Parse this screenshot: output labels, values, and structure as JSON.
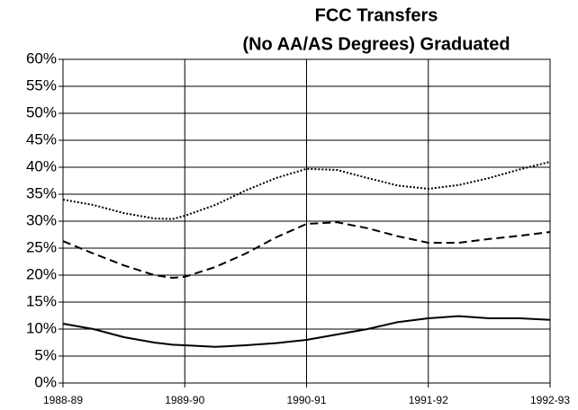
{
  "chart_data": {
    "type": "line",
    "title": [
      "FCC Transfers",
      "(No AA/AS Degrees) Graduated"
    ],
    "x": [
      0,
      0.25,
      0.5,
      0.75,
      0.9,
      1,
      1.25,
      1.5,
      1.75,
      2,
      2.25,
      2.5,
      2.75,
      3,
      3.25,
      3.5,
      3.75,
      4
    ],
    "series": [
      {
        "color": "#000000",
        "dash": "2,2",
        "values": [
          34,
          33,
          31.5,
          30.5,
          30.4,
          31,
          33,
          35.7,
          38,
          39.7,
          39.5,
          38,
          36.6,
          36,
          36.7,
          38,
          39.6,
          41
        ]
      },
      {
        "color": "#000000",
        "dash": "9,5",
        "values": [
          26.3,
          24,
          21.8,
          20,
          19.5,
          19.7,
          21.5,
          24,
          27,
          29.5,
          29.8,
          28.7,
          27.2,
          26,
          26,
          26.7,
          27.3,
          28
        ]
      },
      {
        "color": "#000000",
        "dash": "none",
        "values": [
          11,
          10,
          8.5,
          7.5,
          7.1,
          7,
          6.7,
          7,
          7.4,
          8,
          9,
          10,
          11.3,
          12,
          12.4,
          12,
          12,
          11.7
        ]
      }
    ],
    "xlim": [
      0,
      4
    ],
    "xticks": [
      {
        "value": 0,
        "label": "1988-89"
      },
      {
        "value": 1,
        "label": "1989-90"
      },
      {
        "value": 2,
        "label": "1990-91"
      },
      {
        "value": 3,
        "label": "1991-92"
      },
      {
        "value": 4,
        "label": "1992-93"
      }
    ],
    "ylim": [
      0,
      60
    ],
    "yticks": [
      {
        "value": 0,
        "label": "0%"
      },
      {
        "value": 5,
        "label": "5%"
      },
      {
        "value": 10,
        "label": "10%"
      },
      {
        "value": 15,
        "label": "15%"
      },
      {
        "value": 20,
        "label": "20%"
      },
      {
        "value": 25,
        "label": "25%"
      },
      {
        "value": 30,
        "label": "30%"
      },
      {
        "value": 35,
        "label": "35%"
      },
      {
        "value": 40,
        "label": "40%"
      },
      {
        "value": 45,
        "label": "45%"
      },
      {
        "value": 50,
        "label": "50%"
      },
      {
        "value": 55,
        "label": "55%"
      },
      {
        "value": 60,
        "label": "60%"
      }
    ],
    "grid": true
  }
}
